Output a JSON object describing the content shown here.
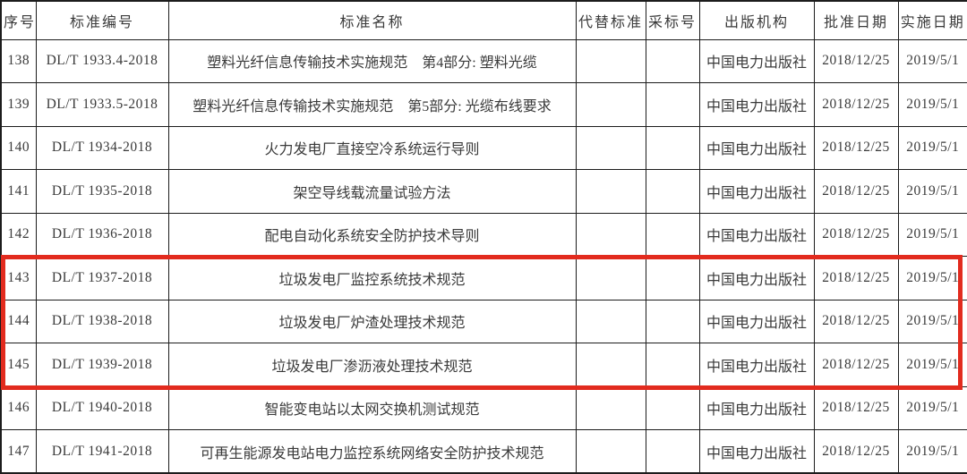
{
  "table": {
    "headers": [
      "序号",
      "标准编号",
      "标准名称",
      "代替标准",
      "采标号",
      "出版机构",
      "批准日期",
      "实施日期"
    ],
    "rows": [
      {
        "no": "138",
        "code": "DL/T 1933.4-2018",
        "name": "塑料光纤信息传输技术实施规范　第4部分: 塑料光缆",
        "replace": "",
        "adopt": "",
        "publisher": "中国电力出版社",
        "approve_date": "2018/12/25",
        "implement_date": "2019/5/1"
      },
      {
        "no": "139",
        "code": "DL/T 1933.5-2018",
        "name": "塑料光纤信息传输技术实施规范　第5部分: 光缆布线要求",
        "replace": "",
        "adopt": "",
        "publisher": "中国电力出版社",
        "approve_date": "2018/12/25",
        "implement_date": "2019/5/1"
      },
      {
        "no": "140",
        "code": "DL/T 1934-2018",
        "name": "火力发电厂直接空冷系统运行导则",
        "replace": "",
        "adopt": "",
        "publisher": "中国电力出版社",
        "approve_date": "2018/12/25",
        "implement_date": "2019/5/1"
      },
      {
        "no": "141",
        "code": "DL/T 1935-2018",
        "name": "架空导线载流量试验方法",
        "replace": "",
        "adopt": "",
        "publisher": "中国电力出版社",
        "approve_date": "2018/12/25",
        "implement_date": "2019/5/1"
      },
      {
        "no": "142",
        "code": "DL/T 1936-2018",
        "name": "配电自动化系统安全防护技术导则",
        "replace": "",
        "adopt": "",
        "publisher": "中国电力出版社",
        "approve_date": "2018/12/25",
        "implement_date": "2019/5/1"
      },
      {
        "no": "143",
        "code": "DL/T 1937-2018",
        "name": "垃圾发电厂监控系统技术规范",
        "replace": "",
        "adopt": "",
        "publisher": "中国电力出版社",
        "approve_date": "2018/12/25",
        "implement_date": "2019/5/1"
      },
      {
        "no": "144",
        "code": "DL/T 1938-2018",
        "name": "垃圾发电厂炉渣处理技术规范",
        "replace": "",
        "adopt": "",
        "publisher": "中国电力出版社",
        "approve_date": "2018/12/25",
        "implement_date": "2019/5/1"
      },
      {
        "no": "145",
        "code": "DL/T 1939-2018",
        "name": "垃圾发电厂渗沥液处理技术规范",
        "replace": "",
        "adopt": "",
        "publisher": "中国电力出版社",
        "approve_date": "2018/12/25",
        "implement_date": "2019/5/1"
      },
      {
        "no": "146",
        "code": "DL/T 1940-2018",
        "name": "智能变电站以太网交换机测试规范",
        "replace": "",
        "adopt": "",
        "publisher": "中国电力出版社",
        "approve_date": "2018/12/25",
        "implement_date": "2019/5/1"
      },
      {
        "no": "147",
        "code": "DL/T 1941-2018",
        "name": "可再生能源发电站电力监控系统网络安全防护技术规范",
        "replace": "",
        "adopt": "",
        "publisher": "中国电力出版社",
        "approve_date": "2018/12/25",
        "implement_date": "2019/5/1"
      }
    ]
  },
  "highlight": {
    "color": "#e22b1e",
    "highlighted_row_numbers": [
      "143",
      "144",
      "145"
    ]
  }
}
